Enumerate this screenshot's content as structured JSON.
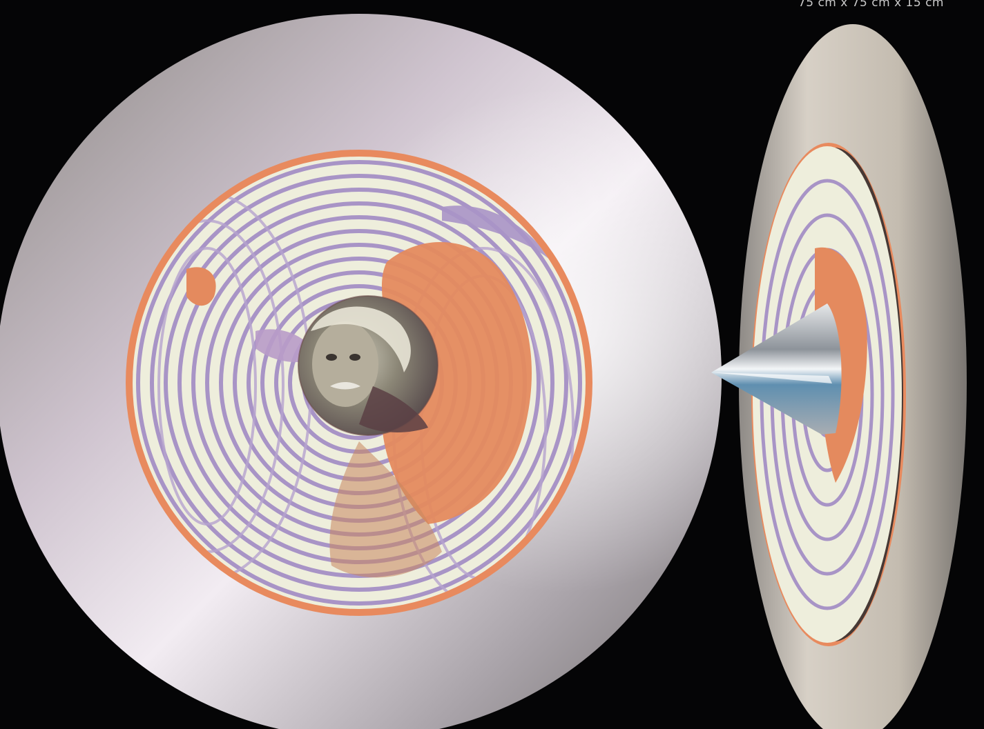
{
  "caption": {
    "dimensions": "75 cm x 75 cm x 15 cm"
  },
  "artwork": {
    "front_view": {
      "disc_color": "#d2c8d2",
      "ring_color": "#e88a5e",
      "pattern_light": "#eeeedc",
      "pattern_violet": "#a894c6",
      "center_portrait": "portrait-photo"
    },
    "side_view": {
      "disc_color": "#c4beb4",
      "cone_color": "#b8bcc2"
    }
  },
  "background_color": "#050506"
}
